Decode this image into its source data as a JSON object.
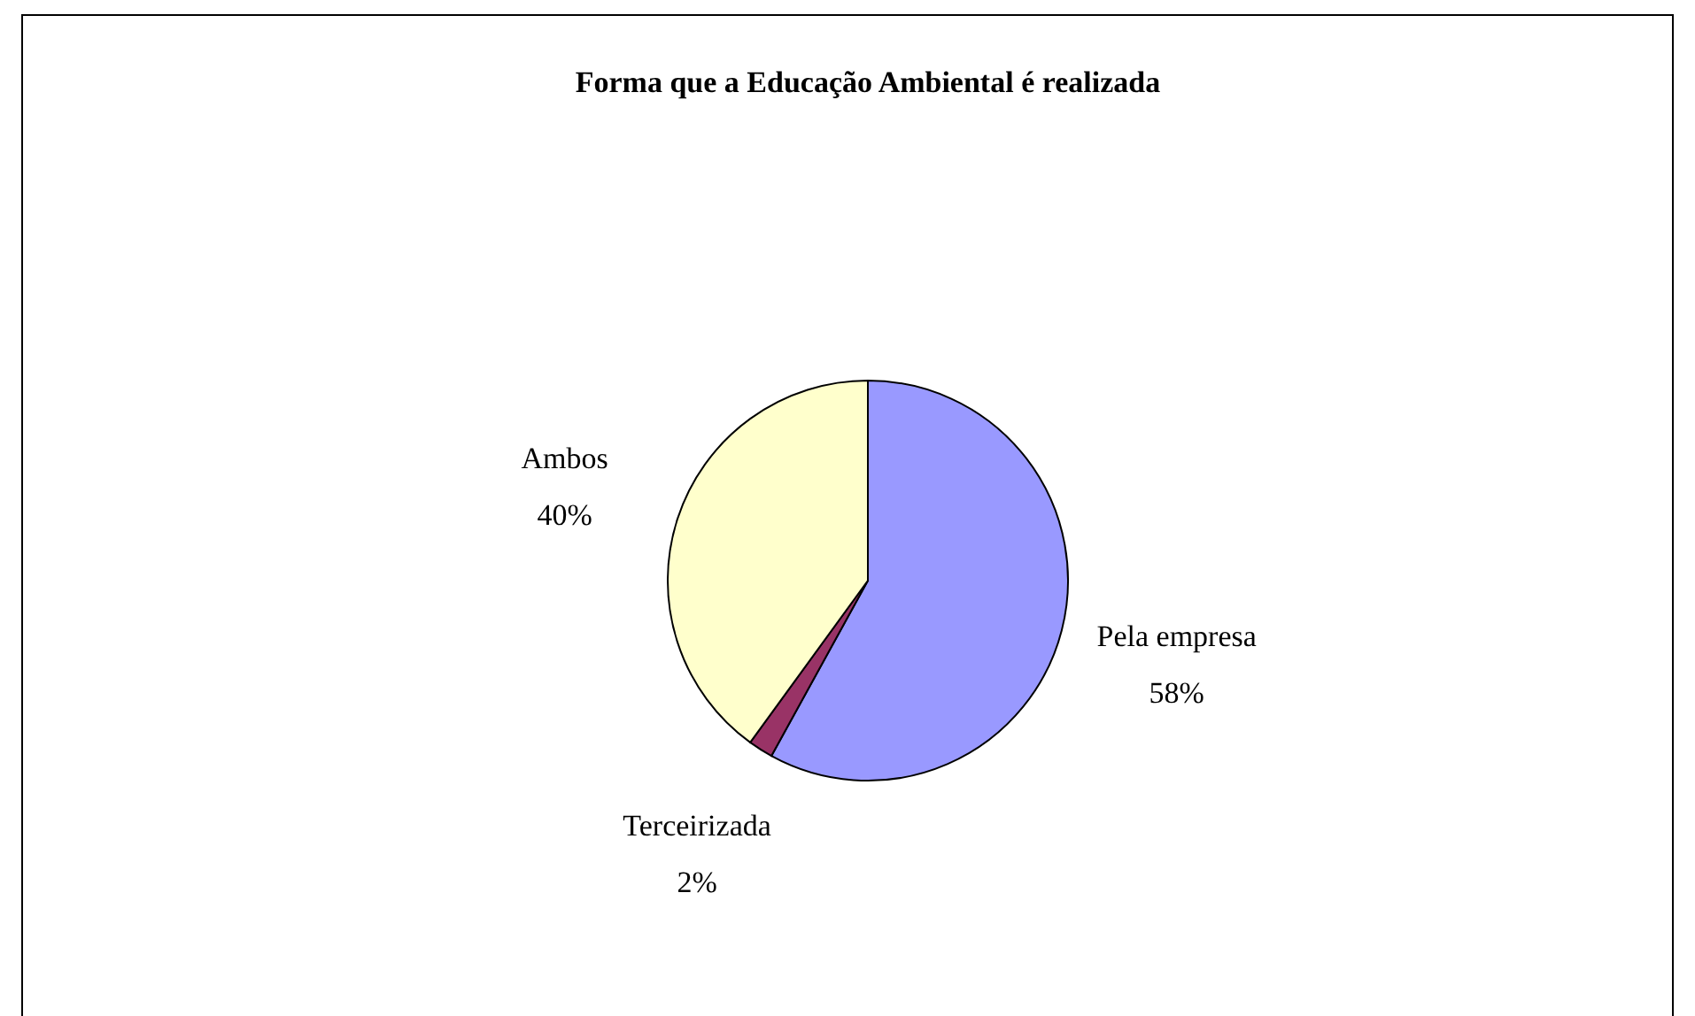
{
  "chart_data": {
    "type": "pie",
    "title": "Forma que a Educação Ambiental é realizada",
    "categories": [
      "Pela empresa",
      "Terceirizada",
      "Ambos"
    ],
    "values": [
      58,
      2,
      40
    ],
    "colors": [
      "#9999ff",
      "#993366",
      "#ffffcc"
    ],
    "value_labels": [
      "58%",
      "2%",
      "40%"
    ]
  }
}
